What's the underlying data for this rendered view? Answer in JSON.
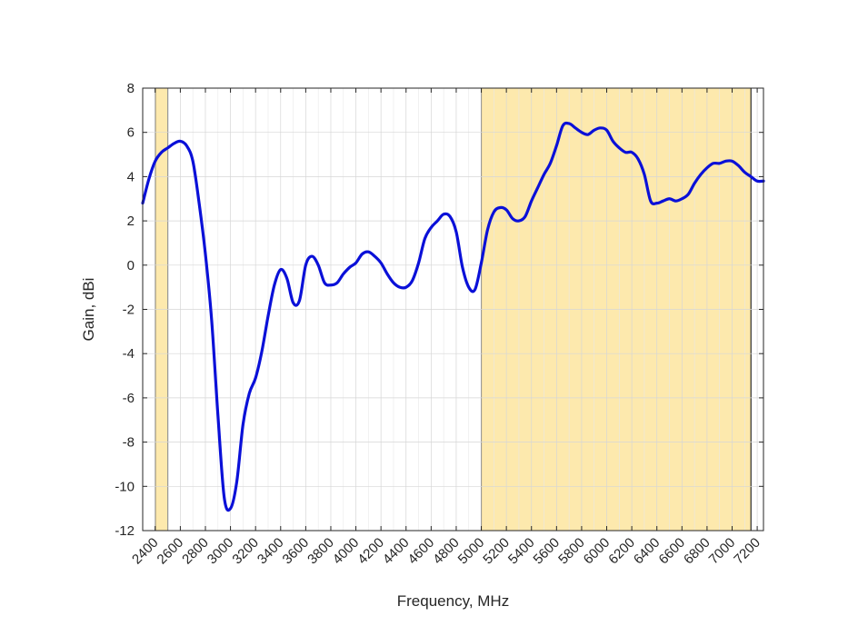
{
  "chart_data": {
    "type": "line",
    "title": "",
    "xlabel": "Frequency, MHz",
    "ylabel": "Gain, dBi",
    "xlim": [
      2300,
      7250
    ],
    "ylim": [
      -12,
      8
    ],
    "grid": true,
    "xticks": [
      2400,
      2600,
      2800,
      3000,
      3200,
      3400,
      3600,
      3800,
      4000,
      4200,
      4400,
      4600,
      4800,
      5000,
      5200,
      5400,
      5600,
      5800,
      6000,
      6200,
      6400,
      6600,
      6800,
      7000,
      7200
    ],
    "yticks": [
      -12,
      -10,
      -8,
      -6,
      -4,
      -2,
      0,
      2,
      4,
      6,
      8
    ],
    "highlight_bands": [
      {
        "from": 2400,
        "to": 2500,
        "color": "#fde9ad"
      },
      {
        "from": 5000,
        "to": 7150,
        "color": "#fde9ad"
      }
    ],
    "series": [
      {
        "color": "#0a10d8",
        "x": [
          2300,
          2350,
          2400,
          2450,
          2500,
          2550,
          2600,
          2650,
          2700,
          2750,
          2800,
          2850,
          2900,
          2950,
          3000,
          3050,
          3100,
          3150,
          3200,
          3250,
          3300,
          3350,
          3400,
          3450,
          3500,
          3550,
          3600,
          3650,
          3700,
          3750,
          3800,
          3850,
          3900,
          3950,
          4000,
          4050,
          4100,
          4150,
          4200,
          4250,
          4300,
          4350,
          4400,
          4450,
          4500,
          4550,
          4600,
          4650,
          4700,
          4750,
          4800,
          4850,
          4900,
          4950,
          5000,
          5050,
          5100,
          5150,
          5200,
          5250,
          5300,
          5350,
          5400,
          5450,
          5500,
          5550,
          5600,
          5650,
          5700,
          5750,
          5800,
          5850,
          5900,
          5950,
          6000,
          6050,
          6100,
          6150,
          6200,
          6250,
          6300,
          6350,
          6400,
          6450,
          6500,
          6550,
          6600,
          6650,
          6700,
          6750,
          6800,
          6850,
          6900,
          6950,
          7000,
          7050,
          7100,
          7150,
          7200,
          7250
        ],
        "y": [
          2.8,
          3.9,
          4.7,
          5.1,
          5.3,
          5.5,
          5.6,
          5.4,
          4.7,
          2.8,
          0.5,
          -2.5,
          -6.8,
          -10.5,
          -11.0,
          -9.8,
          -7.2,
          -5.8,
          -5.1,
          -3.9,
          -2.3,
          -0.9,
          -0.2,
          -0.6,
          -1.7,
          -1.6,
          0.0,
          0.4,
          0.0,
          -0.8,
          -0.9,
          -0.8,
          -0.4,
          -0.1,
          0.1,
          0.5,
          0.6,
          0.4,
          0.1,
          -0.4,
          -0.8,
          -1.0,
          -1.0,
          -0.7,
          0.1,
          1.2,
          1.7,
          2.0,
          2.3,
          2.2,
          1.5,
          -0.1,
          -1.0,
          -1.1,
          0.1,
          1.6,
          2.4,
          2.6,
          2.5,
          2.1,
          2.0,
          2.2,
          2.9,
          3.5,
          4.1,
          4.6,
          5.4,
          6.3,
          6.4,
          6.2,
          6.0,
          5.9,
          6.1,
          6.2,
          6.1,
          5.6,
          5.3,
          5.1,
          5.1,
          4.8,
          4.1,
          2.9,
          2.8,
          2.9,
          3.0,
          2.9,
          3.0,
          3.2,
          3.7,
          4.1,
          4.4,
          4.6,
          4.6,
          4.7,
          4.7,
          4.5,
          4.2,
          4.0,
          3.8,
          3.8
        ]
      }
    ]
  }
}
